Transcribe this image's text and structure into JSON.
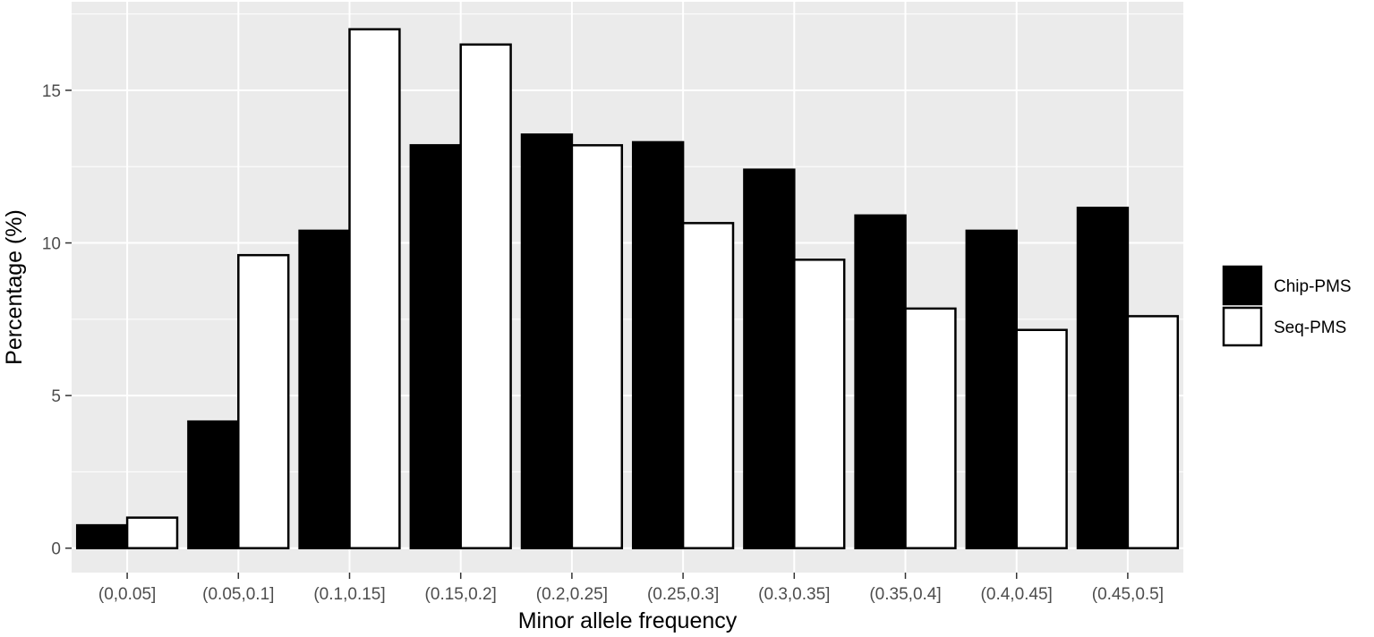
{
  "chart_data": {
    "type": "bar",
    "xlabel": "Minor allele frequency",
    "ylabel": "Percentage (%)",
    "categories": [
      "(0,0.05]",
      "(0.05,0.1]",
      "(0.1,0.15]",
      "(0.15,0.2]",
      "(0.2,0.25]",
      "(0.25,0.3]",
      "(0.3,0.35]",
      "(0.35,0.4]",
      "(0.4,0.45]",
      "(0.45,0.5]"
    ],
    "series": [
      {
        "name": "Chip-PMS",
        "color": "#000000",
        "values": [
          0.75,
          4.15,
          10.4,
          13.2,
          13.55,
          13.3,
          12.4,
          10.9,
          10.4,
          11.15
        ]
      },
      {
        "name": "Seq-PMS",
        "color": "#ffffff",
        "values": [
          1.0,
          9.6,
          17.0,
          16.5,
          13.2,
          10.65,
          9.45,
          7.85,
          7.15,
          7.6
        ]
      }
    ],
    "yticks": [
      0,
      5,
      10,
      15
    ],
    "ylim": [
      -0.8,
      17.9
    ],
    "grid": true,
    "legend_position": "right",
    "panel_background": "#ebebeb"
  }
}
